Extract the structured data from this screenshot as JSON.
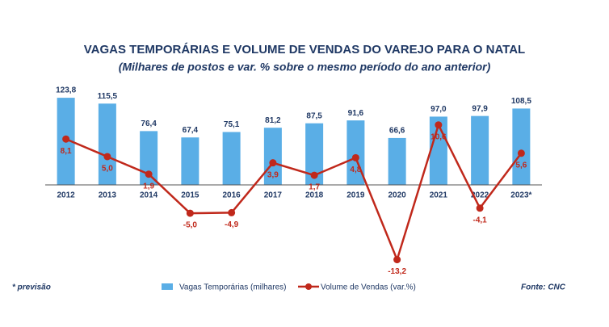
{
  "chart_data": {
    "type": "bar",
    "title": "VAGAS TEMPORÁRIAS E VOLUME DE VENDAS DO VAREJO PARA O NATAL",
    "subtitle": "(Milhares de postos e var. % sobre o mesmo período do ano anterior)",
    "footnote": "* previsão",
    "source": "Fonte: CNC",
    "categories": [
      "2012",
      "2013",
      "2014",
      "2015",
      "2016",
      "2017",
      "2018",
      "2019",
      "2020",
      "2021",
      "2022",
      "2023*"
    ],
    "series": [
      {
        "name": "Vagas Temporárias (milhares)",
        "type": "bar",
        "color": "#5aaee6",
        "values": [
          123.8,
          115.5,
          76.4,
          67.4,
          75.1,
          81.2,
          87.5,
          91.6,
          66.6,
          97.0,
          97.9,
          108.5
        ],
        "value_labels": [
          "123,8",
          "115,5",
          "76,4",
          "67,4",
          "75,1",
          "81,2",
          "87,5",
          "91,6",
          "66,6",
          "97,0",
          "97,9",
          "108,5"
        ]
      },
      {
        "name": "Volume de Vendas (var.%)",
        "type": "line",
        "axis": "y2",
        "color": "#c0281b",
        "values": [
          8.1,
          5.0,
          1.9,
          -5.0,
          -4.9,
          3.9,
          1.7,
          4.8,
          -13.2,
          10.6,
          -4.1,
          5.6
        ],
        "value_labels": [
          "8,1",
          "5,0",
          "1,9",
          "-5,0",
          "-4,9",
          "3,9",
          "1,7",
          "4,8",
          "-13,2",
          "10,6",
          "-4,1",
          "5,6"
        ]
      }
    ],
    "ylim": [
      -116,
      148
    ],
    "y2lim": [
      -14.4,
      18.4
    ],
    "grid": false,
    "legend": "bottom"
  }
}
